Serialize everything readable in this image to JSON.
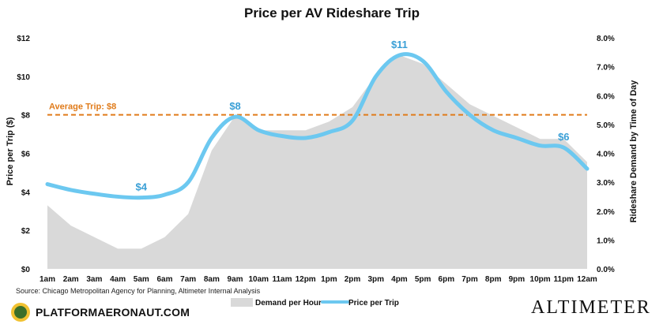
{
  "chart_data": {
    "type": "line",
    "title": "Price per AV Rideshare Trip",
    "categories": [
      "1am",
      "2am",
      "3am",
      "4am",
      "5am",
      "6am",
      "7am",
      "8am",
      "9am",
      "10am",
      "11am",
      "12pm",
      "1pm",
      "2pm",
      "3pm",
      "4pm",
      "5pm",
      "6pm",
      "7pm",
      "8pm",
      "9pm",
      "10pm",
      "11pm",
      "12am"
    ],
    "ylabel": "Price per Trip ($)",
    "y2label": "Rideshare Demand by Time of Day",
    "ylim": [
      0,
      12
    ],
    "y2lim": [
      0,
      8
    ],
    "yticks": [
      "$0",
      "$2",
      "$4",
      "$6",
      "$8",
      "$10",
      "$12"
    ],
    "y2ticks": [
      "0.0%",
      "1.0%",
      "2.0%",
      "3.0%",
      "4.0%",
      "5.0%",
      "6.0%",
      "7.0%",
      "8.0%"
    ],
    "series": [
      {
        "name": "Demand per Hour",
        "kind": "area",
        "axis": "right",
        "color": "#d9d9d9",
        "values": [
          2.2,
          1.5,
          1.1,
          0.7,
          0.7,
          1.1,
          1.9,
          4.1,
          5.3,
          4.8,
          4.8,
          4.8,
          5.1,
          5.6,
          6.7,
          7.4,
          7.1,
          6.4,
          5.7,
          5.3,
          4.9,
          4.5,
          4.5,
          3.7
        ]
      },
      {
        "name": "Price per Trip",
        "kind": "line",
        "axis": "left",
        "color": "#6cc8f0",
        "values": [
          4.4,
          4.1,
          3.9,
          3.75,
          3.7,
          3.85,
          4.5,
          6.8,
          7.9,
          7.2,
          6.9,
          6.8,
          7.1,
          7.7,
          10.0,
          11.1,
          10.8,
          9.2,
          8.0,
          7.2,
          6.8,
          6.4,
          6.3,
          5.2
        ]
      }
    ],
    "average": {
      "label": "Average Trip: $8",
      "value": 8,
      "color": "#e07b1a"
    },
    "annotations": [
      {
        "text": "$4",
        "category": "5am",
        "value": 3.7
      },
      {
        "text": "$8",
        "category": "9am",
        "value": 7.9
      },
      {
        "text": "$11",
        "category": "4pm",
        "value": 11.1
      },
      {
        "text": "$6",
        "category": "11pm",
        "value": 6.3
      }
    ],
    "annotation_color": "#3a9fd6",
    "legend": {
      "position": "bottom-center",
      "items": [
        "Demand per Hour",
        "Price per Trip"
      ]
    },
    "grid": false
  },
  "source": "Source: Chicago Metropolitan Agency for Planning, Altimeter Internal Analysis",
  "brand": {
    "left": "PLATFORMAERONAUT.COM",
    "right": "ALTIMETER"
  }
}
